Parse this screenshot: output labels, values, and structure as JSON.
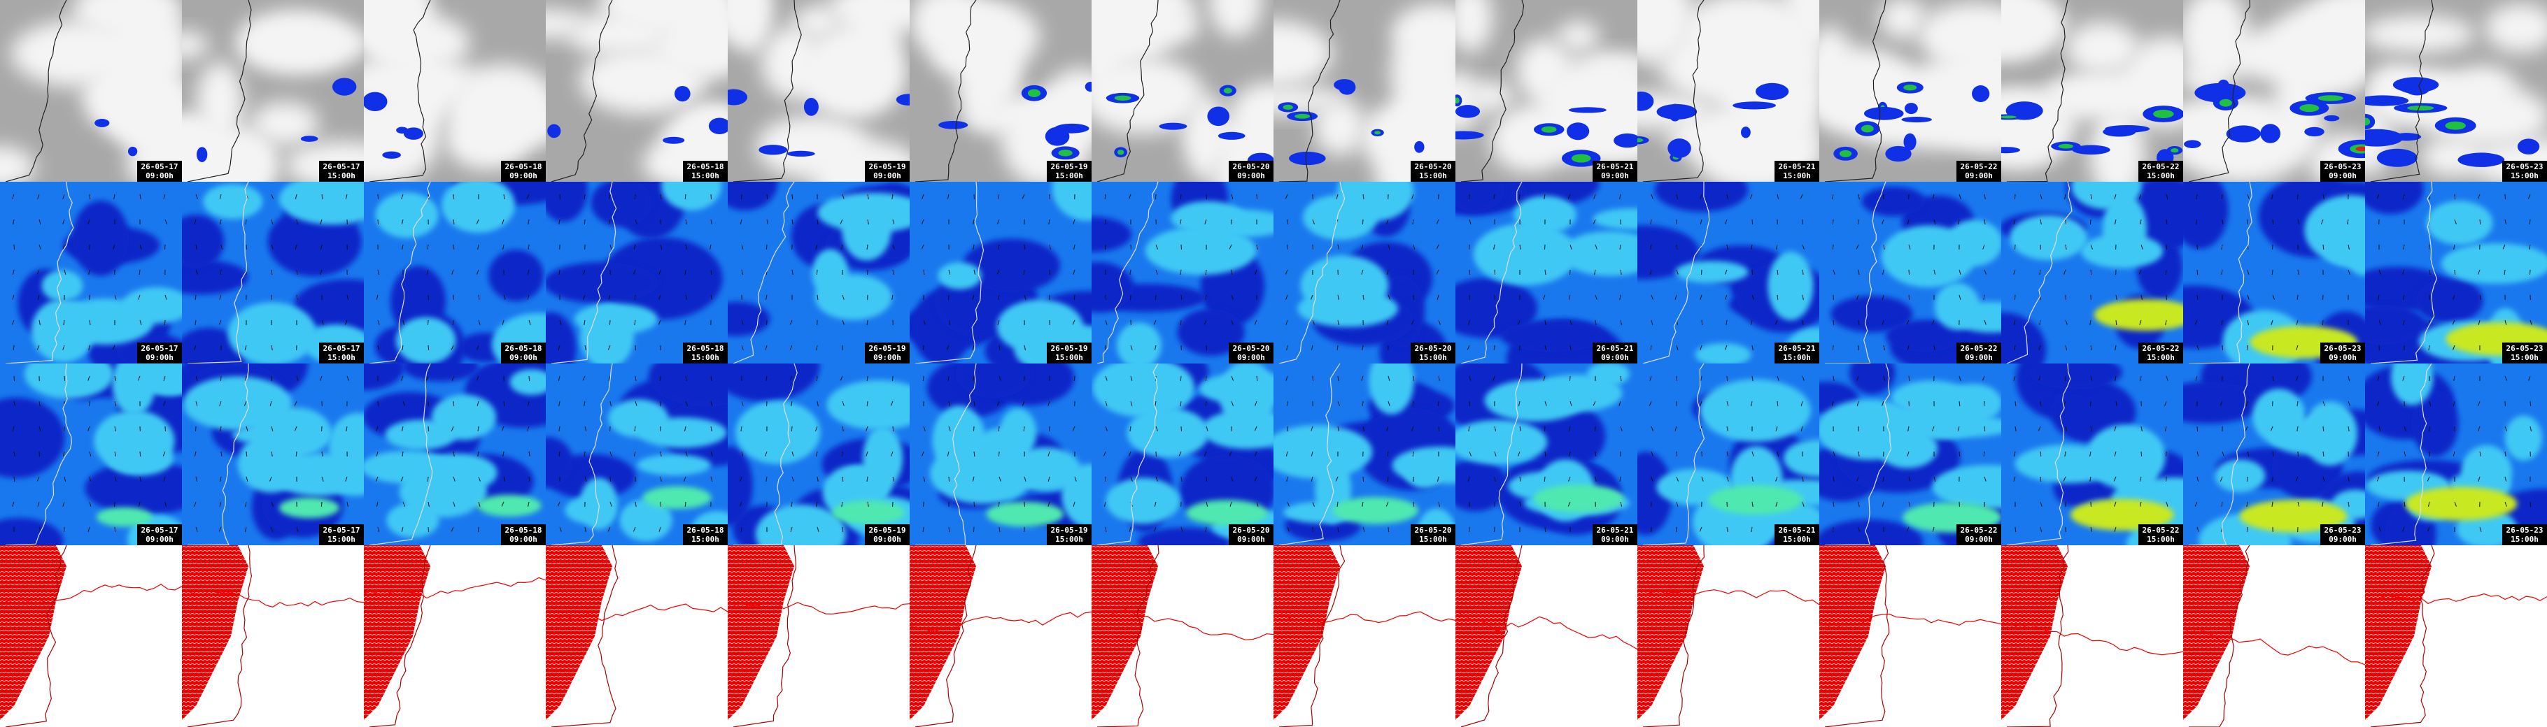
{
  "columns": [
    {
      "date": "26-05-17",
      "time": "09:00h"
    },
    {
      "date": "26-05-17",
      "time": "15:00h"
    },
    {
      "date": "26-05-18",
      "time": "09:00h"
    },
    {
      "date": "26-05-18",
      "time": "15:00h"
    },
    {
      "date": "26-05-19",
      "time": "09:00h"
    },
    {
      "date": "26-05-19",
      "time": "15:00h"
    },
    {
      "date": "26-05-20",
      "time": "09:00h"
    },
    {
      "date": "26-05-20",
      "time": "15:00h"
    },
    {
      "date": "26-05-21",
      "time": "09:00h"
    },
    {
      "date": "26-05-21",
      "time": "15:00h"
    },
    {
      "date": "26-05-22",
      "time": "09:00h"
    },
    {
      "date": "26-05-22",
      "time": "15:00h"
    },
    {
      "date": "26-05-23",
      "time": "09:00h"
    },
    {
      "date": "26-05-23",
      "time": "15:00h"
    }
  ]
}
